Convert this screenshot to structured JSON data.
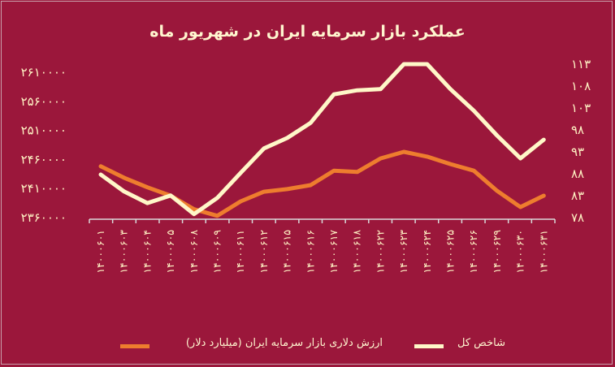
{
  "chart_data": {
    "type": "line",
    "title": "عملکرد بازار سرمایه ایران در شهریور ماه",
    "categories": [
      "۱۴۰۰۰۶۰۱",
      "۱۴۰۰۰۶۰۳",
      "۱۴۰۰۰۶۰۴",
      "۱۴۰۰۰۶۰۵",
      "۱۴۰۰۰۶۰۸",
      "۱۴۰۰۰۶۰۹",
      "۱۴۰۰۰۶۱۱",
      "۱۴۰۰۰۶۱۲",
      "۱۴۰۰۰۶۱۵",
      "۱۴۰۰۰۶۱۶",
      "۱۴۰۰۰۶۱۷",
      "۱۴۰۰۰۶۱۸",
      "۱۴۰۰۰۶۲۲",
      "۱۴۰۰۰۶۲۳",
      "۱۴۰۰۰۶۲۴",
      "۱۴۰۰۰۶۲۵",
      "۱۴۰۰۰۶۲۶",
      "۱۴۰۰۰۶۲۹",
      "۱۴۰۰۰۶۳۰",
      "۱۴۰۰۰۶۳۱"
    ],
    "left_axis": {
      "ylim": [
        2360000,
        2610000
      ],
      "ticks": [
        "۲۶۱۰۰۰۰",
        "۲۵۶۰۰۰۰",
        "۲۵۱۰۰۰۰",
        "۲۴۶۰۰۰۰",
        "۲۴۱۰۰۰۰",
        "۲۳۶۰۰۰۰"
      ],
      "tick_values": [
        2610000,
        2560000,
        2510000,
        2460000,
        2410000,
        2360000
      ]
    },
    "right_axis": {
      "ylim": [
        78,
        113
      ],
      "ticks": [
        "۱۱۳",
        "۱۰۸",
        "۱۰۳",
        "۹۸",
        "۹۳",
        "۸۸",
        "۸۳",
        "۷۸"
      ],
      "tick_values": [
        113,
        108,
        103,
        98,
        93,
        88,
        83,
        78
      ]
    },
    "series": [
      {
        "name": "شاخص کل",
        "axis": "left",
        "color": "#fff7c8",
        "values": [
          2434000,
          2405000,
          2385000,
          2398000,
          2366000,
          2394000,
          2437000,
          2479000,
          2497000,
          2523000,
          2572000,
          2579000,
          2581000,
          2624000,
          2624000,
          2581000,
          2544000,
          2501000,
          2462000,
          2494000
        ]
      },
      {
        "name": "ارزش دلاری بازار سرمایه ایران (میلیارد دلار)",
        "axis": "right",
        "color": "#ee7d2e",
        "values": [
          89.7,
          87.1,
          84.9,
          83.0,
          79.9,
          78.4,
          81.7,
          83.9,
          84.5,
          85.4,
          88.7,
          88.4,
          91.5,
          93.0,
          91.9,
          90.2,
          88.7,
          84.1,
          80.4,
          83.0
        ]
      }
    ],
    "grid": false,
    "legend_position": "bottom",
    "background": "#9b173b"
  }
}
